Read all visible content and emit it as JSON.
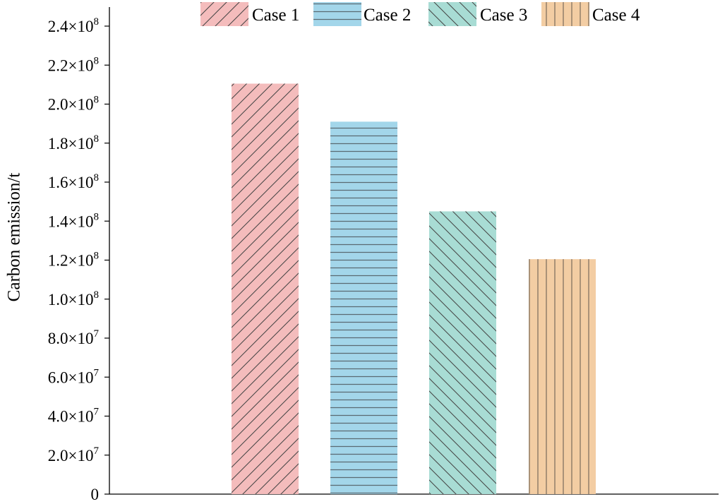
{
  "chart_data": {
    "type": "bar",
    "title": "",
    "xlabel": "",
    "ylabel": "Carbon emission/t",
    "ylim": [
      0,
      250000000
    ],
    "yticks": [
      {
        "value": 0,
        "mantissa": "0",
        "exp": ""
      },
      {
        "value": 20000000,
        "mantissa": "2.0×10",
        "exp": "7"
      },
      {
        "value": 40000000,
        "mantissa": "4.0×10",
        "exp": "7"
      },
      {
        "value": 60000000,
        "mantissa": "6.0×10",
        "exp": "7"
      },
      {
        "value": 80000000,
        "mantissa": "8.0×10",
        "exp": "7"
      },
      {
        "value": 100000000,
        "mantissa": "1.0×10",
        "exp": "8"
      },
      {
        "value": 120000000,
        "mantissa": "1.2×10",
        "exp": "8"
      },
      {
        "value": 140000000,
        "mantissa": "1.4×10",
        "exp": "8"
      },
      {
        "value": 160000000,
        "mantissa": "1.6×10",
        "exp": "8"
      },
      {
        "value": 180000000,
        "mantissa": "1.8×10",
        "exp": "8"
      },
      {
        "value": 200000000,
        "mantissa": "2.0×10",
        "exp": "8"
      },
      {
        "value": 220000000,
        "mantissa": "2.2×10",
        "exp": "8"
      },
      {
        "value": 240000000,
        "mantissa": "2.4×10",
        "exp": "8"
      }
    ],
    "grid": false,
    "legend_position": "top",
    "series": [
      {
        "name": "Case 1",
        "value": 210500000,
        "color": "#f4bcbc",
        "pattern": "diagonal-forward"
      },
      {
        "name": "Case 2",
        "value": 191000000,
        "color": "#a3d6ea",
        "pattern": "horizontal"
      },
      {
        "name": "Case 3",
        "value": 145000000,
        "color": "#a8dcd4",
        "pattern": "diagonal-back"
      },
      {
        "name": "Case 4",
        "value": 120500000,
        "color": "#f3cda3",
        "pattern": "vertical"
      }
    ]
  }
}
